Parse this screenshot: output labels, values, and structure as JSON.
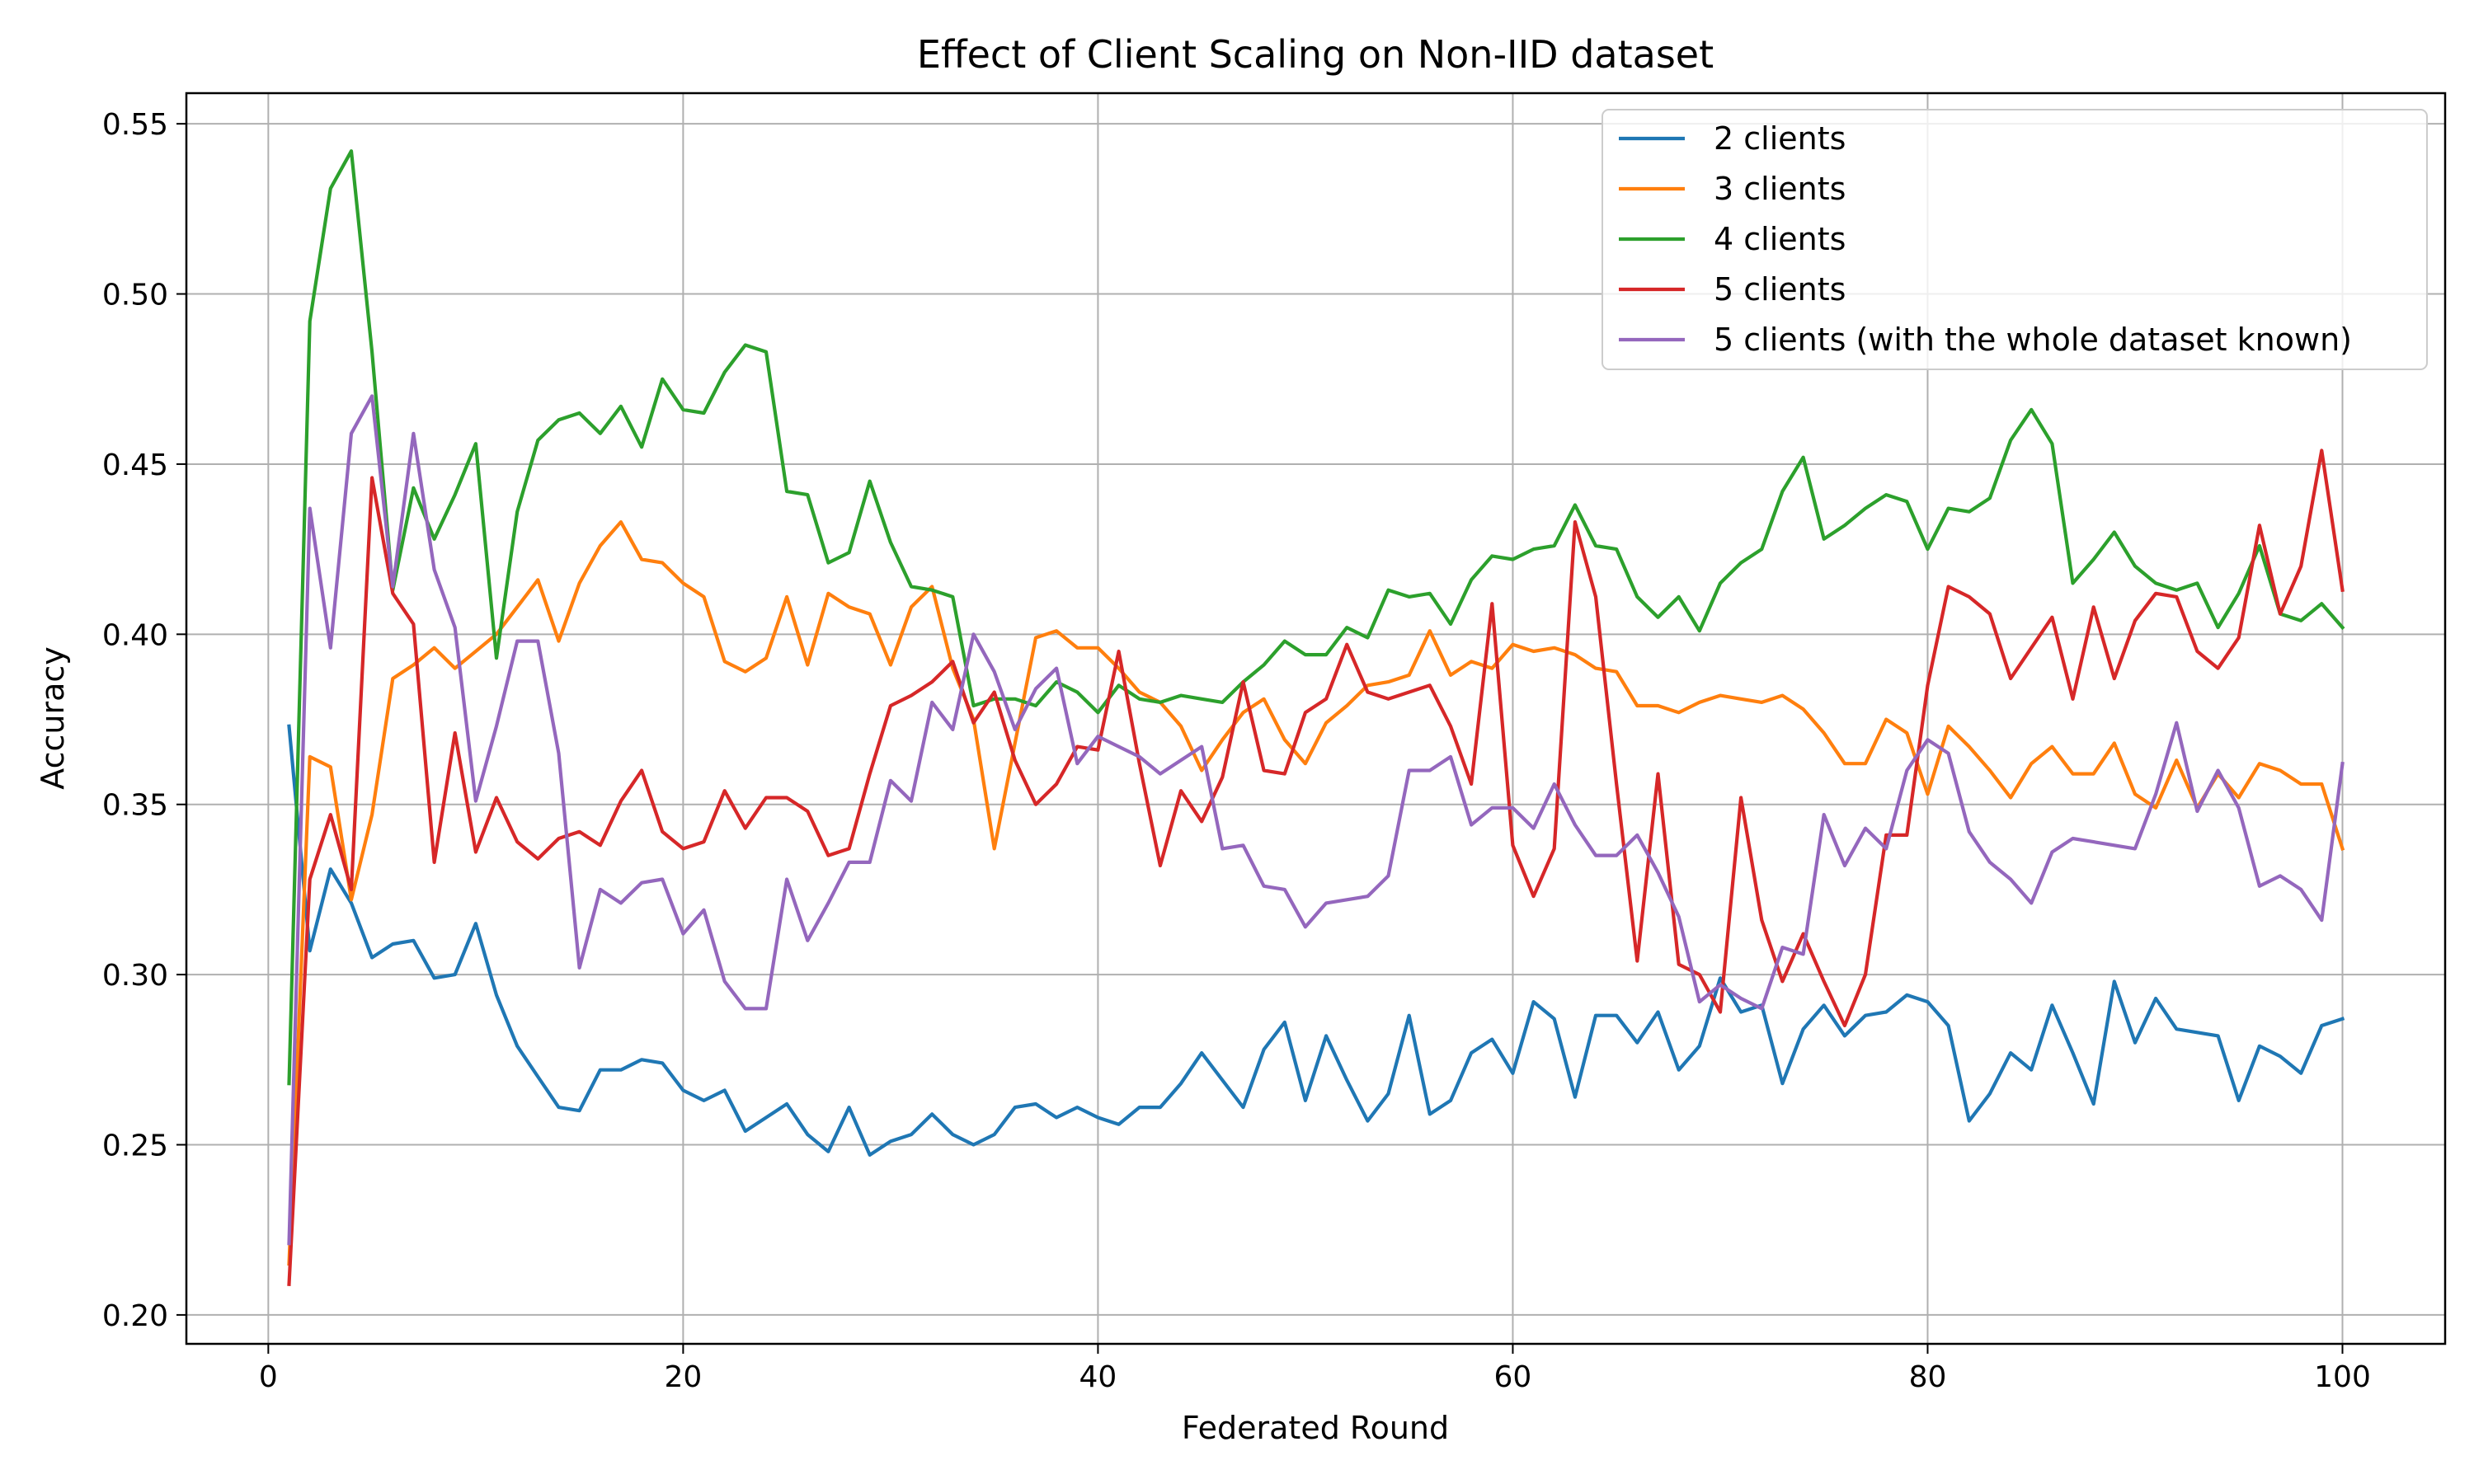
{
  "chart_data": {
    "type": "line",
    "title": "Effect of Client Scaling on Non-IID dataset",
    "xlabel": "Federated Round",
    "ylabel": "Accuracy",
    "xlim": [
      -3.95,
      104.95
    ],
    "ylim": [
      0.1915,
      0.559
    ],
    "xticks": [
      0,
      20,
      40,
      60,
      80,
      100
    ],
    "yticks": [
      0.2,
      0.25,
      0.3,
      0.35,
      0.4,
      0.45,
      0.5,
      0.55
    ],
    "xtick_labels": [
      "0",
      "20",
      "40",
      "60",
      "80",
      "100"
    ],
    "ytick_labels": [
      "0.20",
      "0.25",
      "0.30",
      "0.35",
      "0.40",
      "0.45",
      "0.50",
      "0.55"
    ],
    "grid": true,
    "legend_position": "top-right",
    "series": [
      {
        "name": "2 clients",
        "color": "#1f77b4",
        "values": [
          0.373,
          0.307,
          0.331,
          0.321,
          0.305,
          0.309,
          0.31,
          0.299,
          0.3,
          0.315,
          0.294,
          0.279,
          0.27,
          0.261,
          0.26,
          0.272,
          0.272,
          0.275,
          0.274,
          0.266,
          0.263,
          0.266,
          0.254,
          0.258,
          0.262,
          0.253,
          0.248,
          0.261,
          0.247,
          0.251,
          0.253,
          0.259,
          0.253,
          0.25,
          0.253,
          0.261,
          0.262,
          0.258,
          0.261,
          0.258,
          0.256,
          0.261,
          0.261,
          0.268,
          0.277,
          0.269,
          0.261,
          0.278,
          0.286,
          0.263,
          0.282,
          0.269,
          0.257,
          0.265,
          0.288,
          0.259,
          0.263,
          0.277,
          0.281,
          0.271,
          0.292,
          0.287,
          0.264,
          0.288,
          0.288,
          0.28,
          0.289,
          0.272,
          0.279,
          0.299,
          0.289,
          0.291,
          0.268,
          0.284,
          0.291,
          0.282,
          0.288,
          0.289,
          0.294,
          0.292,
          0.285,
          0.257,
          0.265,
          0.277,
          0.272,
          0.291,
          0.277,
          0.262,
          0.298,
          0.28,
          0.293,
          0.284,
          0.283,
          0.282,
          0.263,
          0.279,
          0.276,
          0.271,
          0.285,
          0.287
        ]
      },
      {
        "name": "3 clients",
        "color": "#ff7f0e",
        "values": [
          0.215,
          0.364,
          0.361,
          0.322,
          0.347,
          0.387,
          0.391,
          0.396,
          0.39,
          0.395,
          0.4,
          0.408,
          0.416,
          0.398,
          0.415,
          0.426,
          0.433,
          0.422,
          0.421,
          0.415,
          0.411,
          0.392,
          0.389,
          0.393,
          0.411,
          0.391,
          0.412,
          0.408,
          0.406,
          0.391,
          0.408,
          0.414,
          0.39,
          0.375,
          0.337,
          0.368,
          0.399,
          0.401,
          0.396,
          0.396,
          0.39,
          0.383,
          0.38,
          0.373,
          0.36,
          0.369,
          0.377,
          0.381,
          0.369,
          0.362,
          0.374,
          0.379,
          0.385,
          0.386,
          0.388,
          0.401,
          0.388,
          0.392,
          0.39,
          0.397,
          0.395,
          0.396,
          0.394,
          0.39,
          0.389,
          0.379,
          0.379,
          0.377,
          0.38,
          0.382,
          0.381,
          0.38,
          0.382,
          0.378,
          0.371,
          0.362,
          0.362,
          0.375,
          0.371,
          0.353,
          0.373,
          0.367,
          0.36,
          0.352,
          0.362,
          0.367,
          0.359,
          0.359,
          0.368,
          0.353,
          0.349,
          0.363,
          0.349,
          0.359,
          0.352,
          0.362,
          0.36,
          0.356,
          0.356,
          0.337
        ]
      },
      {
        "name": "4 clients",
        "color": "#2ca02c",
        "values": [
          0.268,
          0.492,
          0.531,
          0.542,
          0.483,
          0.413,
          0.443,
          0.428,
          0.441,
          0.456,
          0.393,
          0.436,
          0.457,
          0.463,
          0.465,
          0.459,
          0.467,
          0.455,
          0.475,
          0.466,
          0.465,
          0.477,
          0.485,
          0.483,
          0.442,
          0.441,
          0.421,
          0.424,
          0.445,
          0.427,
          0.414,
          0.413,
          0.411,
          0.379,
          0.381,
          0.381,
          0.379,
          0.386,
          0.383,
          0.377,
          0.385,
          0.381,
          0.38,
          0.382,
          0.381,
          0.38,
          0.386,
          0.391,
          0.398,
          0.394,
          0.394,
          0.402,
          0.399,
          0.413,
          0.411,
          0.412,
          0.403,
          0.416,
          0.423,
          0.422,
          0.425,
          0.426,
          0.438,
          0.426,
          0.425,
          0.411,
          0.405,
          0.411,
          0.401,
          0.415,
          0.421,
          0.425,
          0.442,
          0.452,
          0.428,
          0.432,
          0.437,
          0.441,
          0.439,
          0.425,
          0.437,
          0.436,
          0.44,
          0.457,
          0.466,
          0.456,
          0.415,
          0.422,
          0.43,
          0.42,
          0.415,
          0.413,
          0.415,
          0.402,
          0.412,
          0.426,
          0.406,
          0.404,
          0.409,
          0.402
        ]
      },
      {
        "name": "5 clients",
        "color": "#d62728",
        "values": [
          0.209,
          0.328,
          0.347,
          0.325,
          0.446,
          0.412,
          0.403,
          0.333,
          0.371,
          0.336,
          0.352,
          0.339,
          0.334,
          0.34,
          0.342,
          0.338,
          0.351,
          0.36,
          0.342,
          0.337,
          0.339,
          0.354,
          0.343,
          0.352,
          0.352,
          0.348,
          0.335,
          0.337,
          0.359,
          0.379,
          0.382,
          0.386,
          0.392,
          0.374,
          0.383,
          0.363,
          0.35,
          0.356,
          0.367,
          0.366,
          0.395,
          0.362,
          0.332,
          0.354,
          0.345,
          0.358,
          0.386,
          0.36,
          0.359,
          0.377,
          0.381,
          0.397,
          0.383,
          0.381,
          0.383,
          0.385,
          0.373,
          0.356,
          0.409,
          0.338,
          0.323,
          0.337,
          0.433,
          0.411,
          0.356,
          0.304,
          0.359,
          0.303,
          0.3,
          0.289,
          0.352,
          0.316,
          0.298,
          0.312,
          0.298,
          0.285,
          0.3,
          0.341,
          0.341,
          0.385,
          0.414,
          0.411,
          0.406,
          0.387,
          0.396,
          0.405,
          0.381,
          0.408,
          0.387,
          0.404,
          0.412,
          0.411,
          0.395,
          0.39,
          0.399,
          0.432,
          0.406,
          0.42,
          0.454,
          0.413
        ]
      },
      {
        "name": "5 clients (with the whole dataset known)",
        "color": "#9467bd",
        "values": [
          0.221,
          0.437,
          0.396,
          0.459,
          0.47,
          0.414,
          0.459,
          0.419,
          0.402,
          0.351,
          0.373,
          0.398,
          0.398,
          0.365,
          0.302,
          0.325,
          0.321,
          0.327,
          0.328,
          0.312,
          0.319,
          0.298,
          0.29,
          0.29,
          0.328,
          0.31,
          0.321,
          0.333,
          0.333,
          0.357,
          0.351,
          0.38,
          0.372,
          0.4,
          0.389,
          0.372,
          0.384,
          0.39,
          0.362,
          0.37,
          0.367,
          0.364,
          0.359,
          0.363,
          0.367,
          0.337,
          0.338,
          0.326,
          0.325,
          0.314,
          0.321,
          0.322,
          0.323,
          0.329,
          0.36,
          0.36,
          0.364,
          0.344,
          0.349,
          0.349,
          0.343,
          0.356,
          0.344,
          0.335,
          0.335,
          0.341,
          0.33,
          0.317,
          0.292,
          0.297,
          0.293,
          0.29,
          0.308,
          0.306,
          0.347,
          0.332,
          0.343,
          0.337,
          0.36,
          0.369,
          0.365,
          0.342,
          0.333,
          0.328,
          0.321,
          0.336,
          0.34,
          0.339,
          0.338,
          0.337,
          0.353,
          0.374,
          0.348,
          0.36,
          0.349,
          0.326,
          0.329,
          0.325,
          0.316,
          0.362
        ]
      }
    ]
  }
}
